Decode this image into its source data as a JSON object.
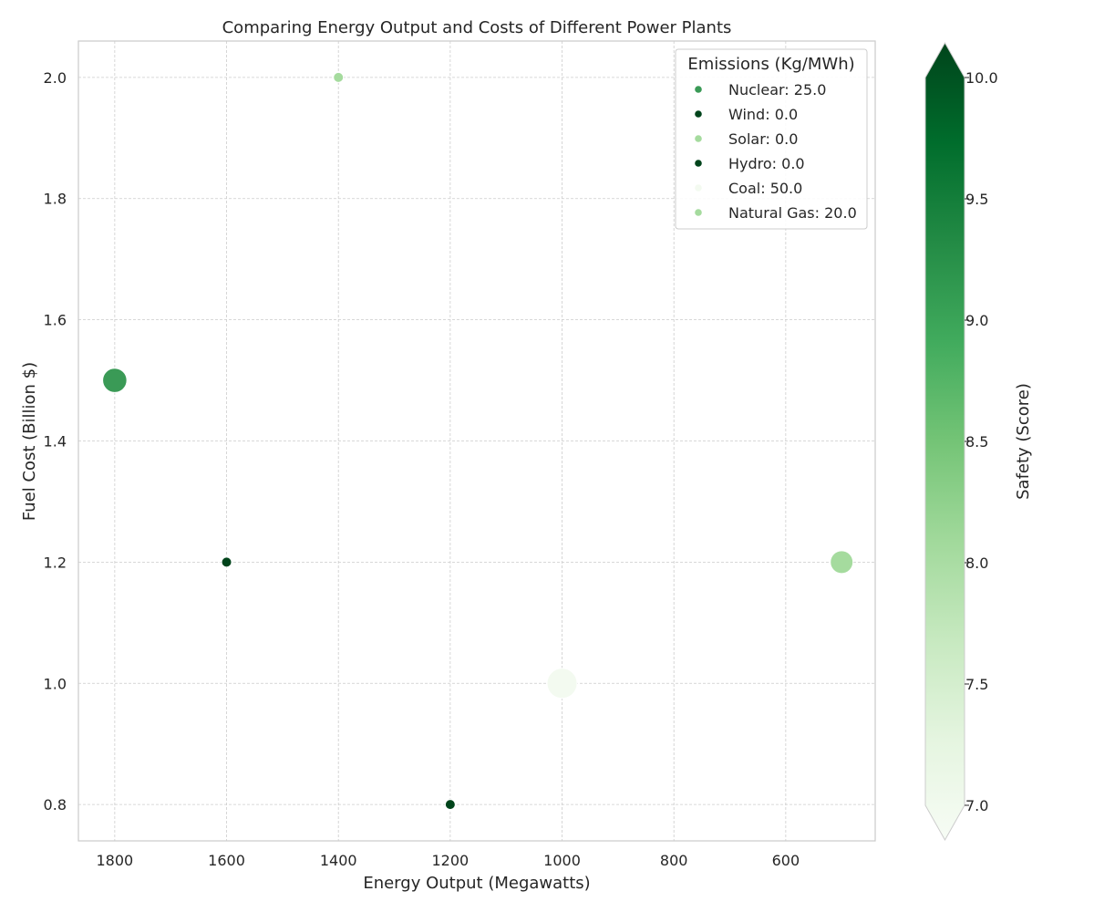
{
  "chart_data": {
    "type": "scatter",
    "title": "Comparing Energy Output and Costs of Different Power Plants",
    "xlabel": "Energy Output (Megawatts)",
    "ylabel": "Fuel Cost (Billion $)",
    "x_inverted": true,
    "xlim": [
      1865,
      440
    ],
    "ylim": [
      0.74,
      2.06
    ],
    "x_ticks": [
      1800,
      1600,
      1400,
      1200,
      1000,
      800,
      600
    ],
    "y_ticks": [
      0.8,
      1.0,
      1.2,
      1.4,
      1.6,
      1.8,
      2.0
    ],
    "grid": true,
    "legend": {
      "title": "Emissions (Kg/MWh)",
      "placement": "top-right"
    },
    "colorbar": {
      "label": "Safety (Score)",
      "min": 7.0,
      "max": 10.0,
      "ticks": [
        7.0,
        7.5,
        8.0,
        8.5,
        9.0,
        9.5,
        10.0
      ],
      "extend": "both",
      "colormap": [
        "#f7fcf5",
        "#e5f5e0",
        "#c7e9c0",
        "#a1d99b",
        "#74c476",
        "#41ab5d",
        "#238b45",
        "#006d2c",
        "#00441b"
      ]
    },
    "points": [
      {
        "label": "Nuclear: 25.0",
        "energy_output": 1800,
        "fuel_cost": 1.5,
        "emissions": 25.0,
        "safety": 9.0,
        "color": "#3a9a56"
      },
      {
        "label": "Wind: 0.0",
        "energy_output": 1600,
        "fuel_cost": 1.2,
        "emissions": 0.0,
        "safety": 10.0,
        "color": "#00441b"
      },
      {
        "label": "Solar: 0.0",
        "energy_output": 1400,
        "fuel_cost": 2.0,
        "emissions": 0.0,
        "safety": 8.0,
        "color": "#a5db9e"
      },
      {
        "label": "Hydro: 0.0",
        "energy_output": 1200,
        "fuel_cost": 0.8,
        "emissions": 0.0,
        "safety": 10.0,
        "color": "#00441b"
      },
      {
        "label": "Coal: 50.0",
        "energy_output": 1000,
        "fuel_cost": 1.0,
        "emissions": 50.0,
        "safety": 7.0,
        "color": "#f3faf0"
      },
      {
        "label": "Natural Gas: 20.0",
        "energy_output": 500,
        "fuel_cost": 1.2,
        "emissions": 20.0,
        "safety": 8.0,
        "color": "#a5db9e"
      }
    ]
  }
}
